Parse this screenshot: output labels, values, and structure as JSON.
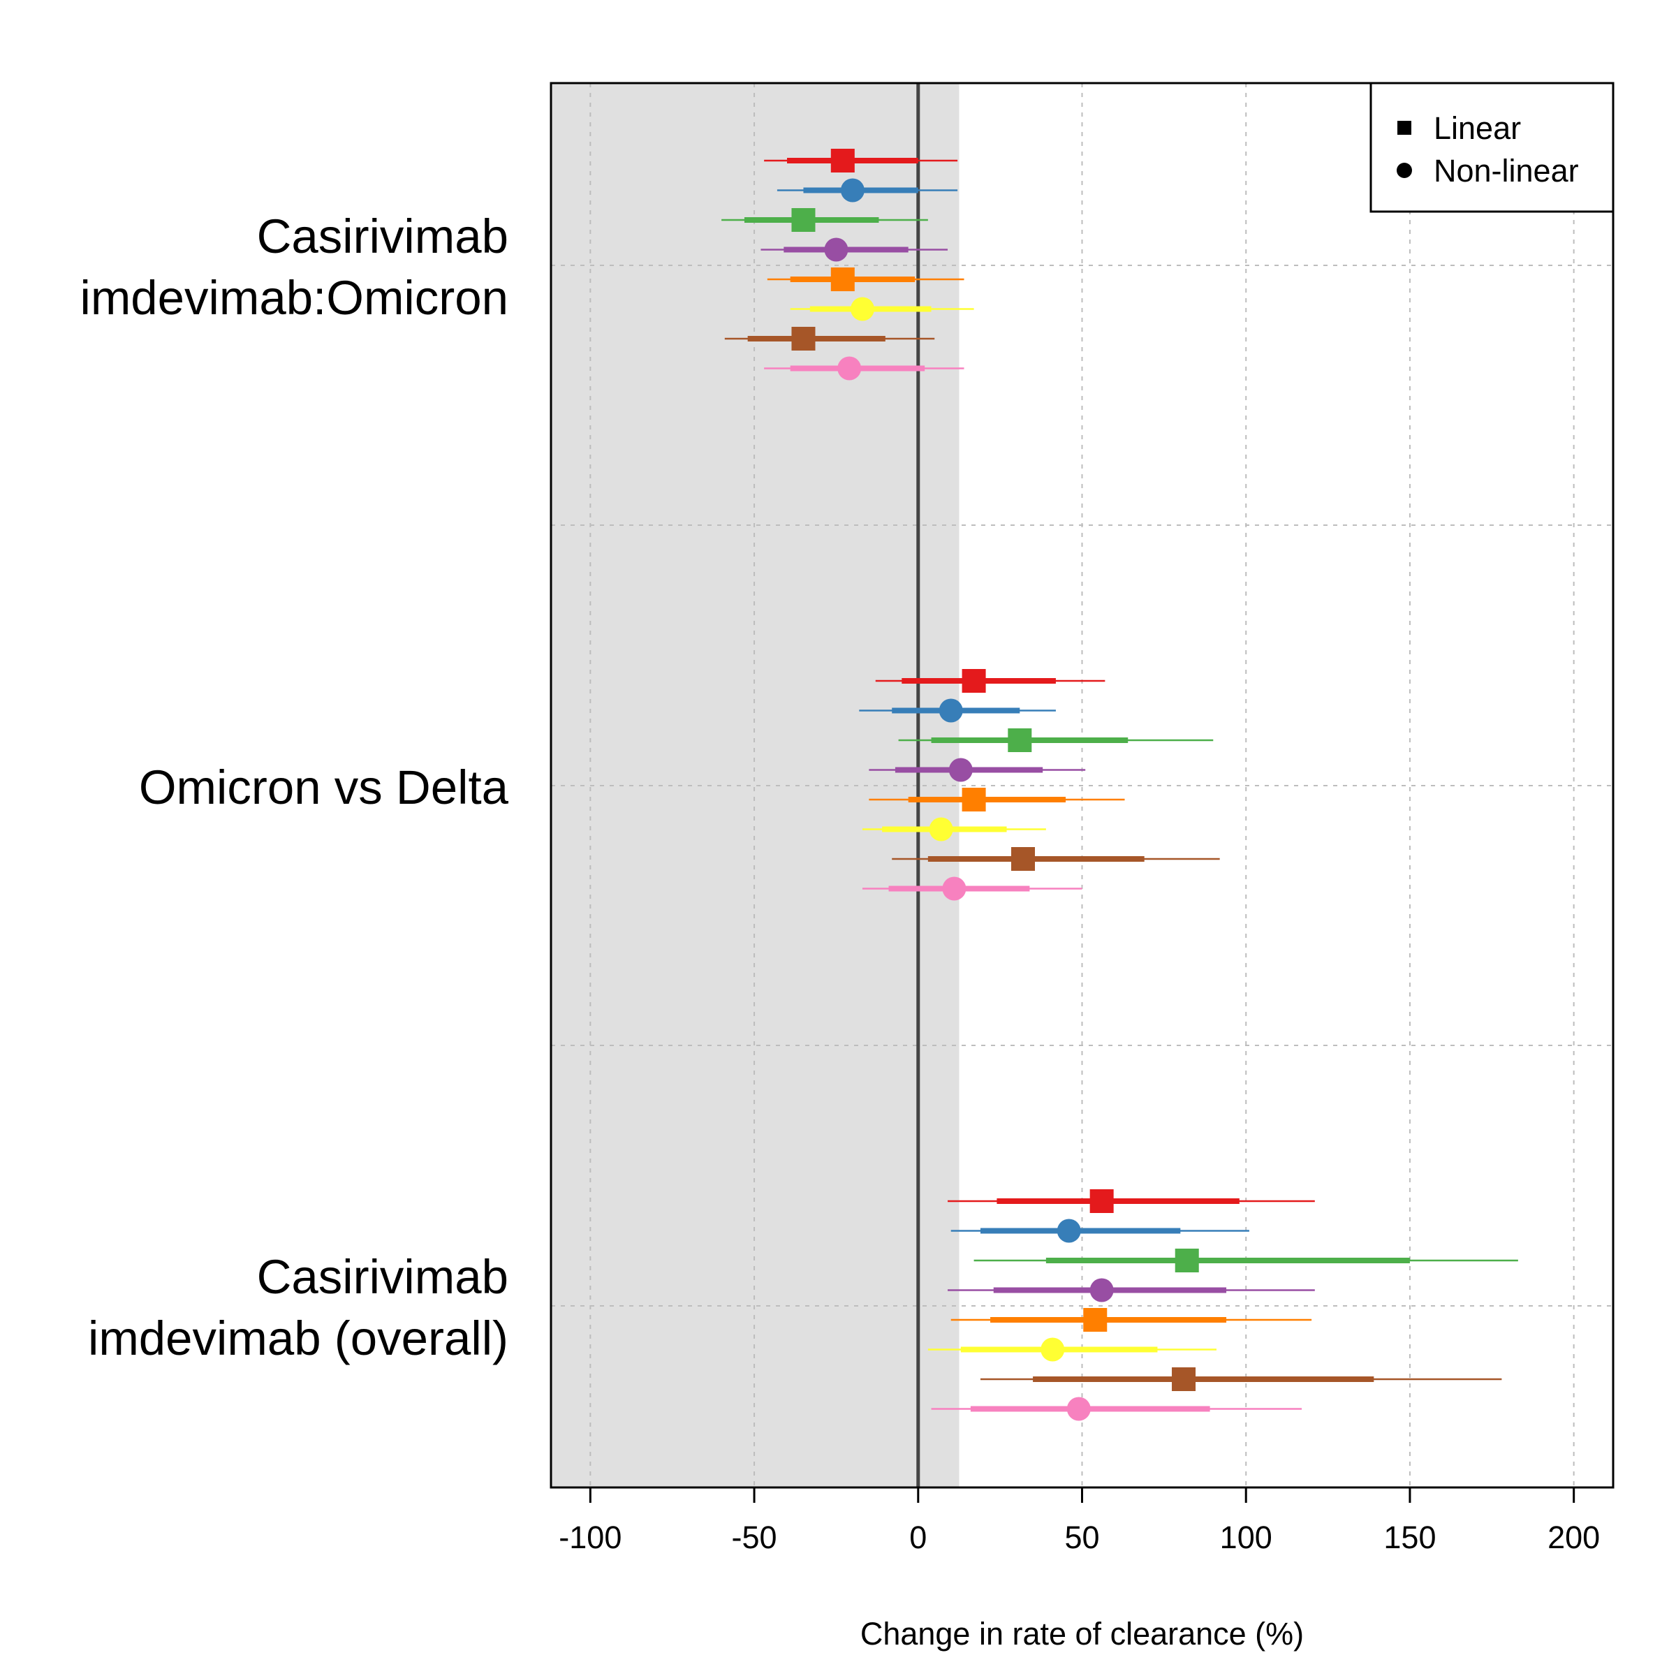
{
  "chart_data": {
    "type": "forest",
    "xlabel": "Change in rate of clearance (%)",
    "xlim": [
      -112,
      212
    ],
    "x_ticks": [
      -100,
      -50,
      0,
      50,
      100,
      150,
      200
    ],
    "x_tick_labels": [
      "-100",
      "-50",
      "0",
      "50",
      "100",
      "150",
      "200"
    ],
    "grid": true,
    "reference_line": 0,
    "shaded_region": [
      -112,
      12.5
    ],
    "legend": {
      "position": "top-right",
      "entries": [
        {
          "label": "Linear",
          "shape": "square"
        },
        {
          "label": "Non-linear",
          "shape": "circle"
        }
      ]
    },
    "colors": [
      "#e41a1c",
      "#377eb8",
      "#4daf4a",
      "#984ea3",
      "#ff7f00",
      "#ffff33",
      "#a65628",
      "#f781bf"
    ],
    "groups": [
      {
        "label_lines": [
          "Casirivimab",
          "imdevimab:Omicron"
        ],
        "points": [
          {
            "estimate": -23,
            "ci50": [
              -40,
              0
            ],
            "ci95": [
              -47,
              12
            ],
            "shape": "square"
          },
          {
            "estimate": -20,
            "ci50": [
              -35,
              0
            ],
            "ci95": [
              -43,
              12
            ],
            "shape": "circle"
          },
          {
            "estimate": -35,
            "ci50": [
              -53,
              -12
            ],
            "ci95": [
              -60,
              3
            ],
            "shape": "square"
          },
          {
            "estimate": -25,
            "ci50": [
              -41,
              -3
            ],
            "ci95": [
              -48,
              9
            ],
            "shape": "circle"
          },
          {
            "estimate": -23,
            "ci50": [
              -39,
              -1
            ],
            "ci95": [
              -46,
              14
            ],
            "shape": "square"
          },
          {
            "estimate": -17,
            "ci50": [
              -33,
              4
            ],
            "ci95": [
              -39,
              17
            ],
            "shape": "circle"
          },
          {
            "estimate": -35,
            "ci50": [
              -52,
              -10
            ],
            "ci95": [
              -59,
              5
            ],
            "shape": "square"
          },
          {
            "estimate": -21,
            "ci50": [
              -39,
              2
            ],
            "ci95": [
              -47,
              14
            ],
            "shape": "circle"
          }
        ]
      },
      {
        "label_lines": [
          "Omicron vs Delta"
        ],
        "points": [
          {
            "estimate": 17,
            "ci50": [
              -5,
              42
            ],
            "ci95": [
              -13,
              57
            ],
            "shape": "square"
          },
          {
            "estimate": 10,
            "ci50": [
              -8,
              31
            ],
            "ci95": [
              -18,
              42
            ],
            "shape": "circle"
          },
          {
            "estimate": 31,
            "ci50": [
              4,
              64
            ],
            "ci95": [
              -6,
              90
            ],
            "shape": "square"
          },
          {
            "estimate": 13,
            "ci50": [
              -7,
              38
            ],
            "ci95": [
              -15,
              51
            ],
            "shape": "circle"
          },
          {
            "estimate": 17,
            "ci50": [
              -3,
              45
            ],
            "ci95": [
              -15,
              63
            ],
            "shape": "square"
          },
          {
            "estimate": 7,
            "ci50": [
              -11,
              27
            ],
            "ci95": [
              -17,
              39
            ],
            "shape": "circle"
          },
          {
            "estimate": 32,
            "ci50": [
              3,
              69
            ],
            "ci95": [
              -8,
              92
            ],
            "shape": "square"
          },
          {
            "estimate": 11,
            "ci50": [
              -9,
              34
            ],
            "ci95": [
              -17,
              50
            ],
            "shape": "circle"
          }
        ]
      },
      {
        "label_lines": [
          "Casirivimab",
          "imdevimab (overall)"
        ],
        "points": [
          {
            "estimate": 56,
            "ci50": [
              24,
              98
            ],
            "ci95": [
              9,
              121
            ],
            "shape": "square"
          },
          {
            "estimate": 46,
            "ci50": [
              19,
              80
            ],
            "ci95": [
              10,
              101
            ],
            "shape": "circle"
          },
          {
            "estimate": 82,
            "ci50": [
              39,
              150
            ],
            "ci95": [
              17,
              183
            ],
            "shape": "square"
          },
          {
            "estimate": 56,
            "ci50": [
              23,
              94
            ],
            "ci95": [
              9,
              121
            ],
            "shape": "circle"
          },
          {
            "estimate": 54,
            "ci50": [
              22,
              94
            ],
            "ci95": [
              10,
              120
            ],
            "shape": "square"
          },
          {
            "estimate": 41,
            "ci50": [
              13,
              73
            ],
            "ci95": [
              3,
              91
            ],
            "shape": "circle"
          },
          {
            "estimate": 81,
            "ci50": [
              35,
              139
            ],
            "ci95": [
              19,
              178
            ],
            "shape": "square"
          },
          {
            "estimate": 49,
            "ci50": [
              16,
              89
            ],
            "ci95": [
              4,
              117
            ],
            "shape": "circle"
          }
        ]
      }
    ]
  }
}
